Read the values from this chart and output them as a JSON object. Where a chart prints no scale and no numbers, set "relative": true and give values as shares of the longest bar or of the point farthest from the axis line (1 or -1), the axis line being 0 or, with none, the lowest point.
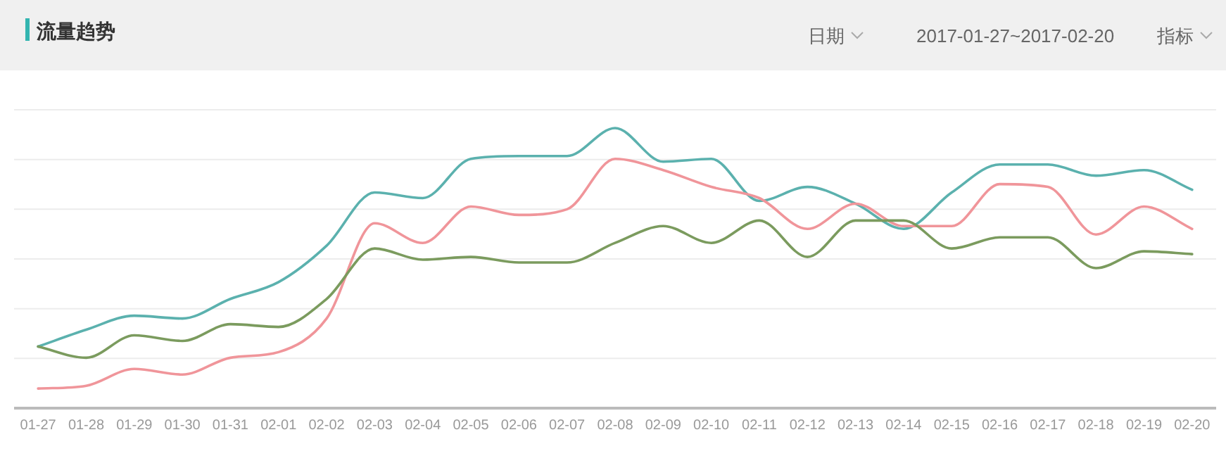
{
  "chart_data": {
    "type": "line",
    "title": "流量趋势",
    "annotations": [
      "日期",
      "2017-01-27~2017-02-20",
      "指标"
    ],
    "categories": [
      "01-27",
      "01-28",
      "01-29",
      "01-30",
      "01-31",
      "02-01",
      "02-02",
      "02-03",
      "02-04",
      "02-05",
      "02-06",
      "02-07",
      "02-08",
      "02-09",
      "02-10",
      "02-11",
      "02-12",
      "02-13",
      "02-14",
      "02-15",
      "02-16",
      "02-17",
      "02-18",
      "02-19",
      "02-20"
    ],
    "relative": true,
    "grid": true,
    "marker": "none",
    "line_style": "solid",
    "series": [
      {
        "color": "#5bb1ae",
        "values": [
          0.22,
          0.28,
          0.33,
          0.32,
          0.39,
          0.45,
          0.58,
          0.77,
          0.75,
          0.89,
          0.9,
          0.9,
          1.0,
          0.88,
          0.89,
          0.74,
          0.79,
          0.73,
          0.64,
          0.77,
          0.87,
          0.87,
          0.83,
          0.85,
          0.78
        ]
      },
      {
        "color": "#f0959a",
        "values": [
          0.07,
          0.08,
          0.14,
          0.12,
          0.18,
          0.2,
          0.32,
          0.66,
          0.59,
          0.72,
          0.69,
          0.71,
          0.89,
          0.85,
          0.79,
          0.75,
          0.64,
          0.73,
          0.65,
          0.65,
          0.8,
          0.79,
          0.62,
          0.72,
          0.64
        ]
      },
      {
        "color": "#7b9b5e",
        "values": [
          0.22,
          0.18,
          0.26,
          0.24,
          0.3,
          0.29,
          0.39,
          0.57,
          0.53,
          0.54,
          0.52,
          0.52,
          0.59,
          0.65,
          0.59,
          0.67,
          0.54,
          0.67,
          0.67,
          0.57,
          0.61,
          0.61,
          0.5,
          0.56,
          0.55
        ]
      }
    ]
  }
}
